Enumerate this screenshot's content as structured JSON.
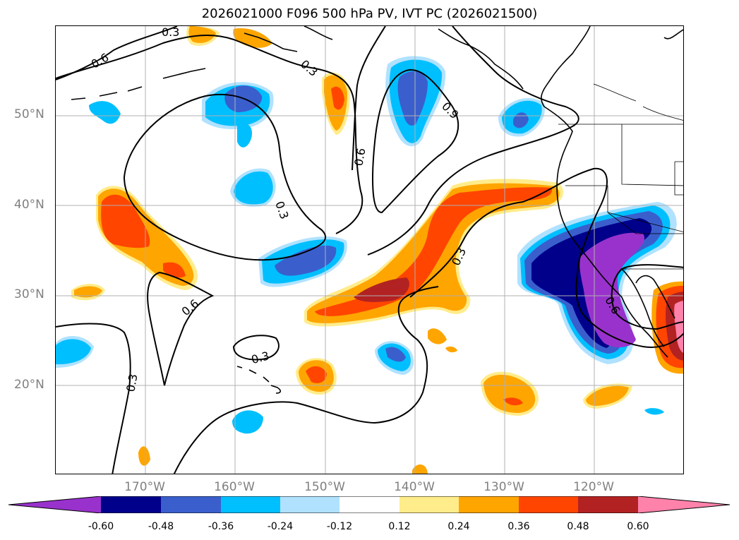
{
  "title": "2026021000 F096 500 hPa PV, IVT PC (2026021500)",
  "lat_labels": [
    "50°N",
    "40°N",
    "30°N",
    "20°N"
  ],
  "lon_labels": [
    "170°W",
    "160°W",
    "150°W",
    "140°W",
    "130°W",
    "120°W"
  ],
  "contour_labels": [
    "0.3",
    "0.6",
    "0.3",
    "0.9",
    "0.6",
    "0.3",
    "0.3",
    "0.6",
    "0.3",
    "0.3",
    "0.6"
  ],
  "colorbar": {
    "colors": [
      "#9932cc",
      "#00008b",
      "#3a5fcd",
      "#00bfff",
      "#b0e2ff",
      "#ffffff",
      "#ffec8b",
      "#ffa500",
      "#ff4500",
      "#b22222",
      "#ff82ab"
    ],
    "ticks": [
      "-0.60",
      "-0.48",
      "-0.36",
      "-0.24",
      "-0.12",
      "0.12",
      "0.24",
      "0.36",
      "0.48",
      "0.60"
    ]
  }
}
